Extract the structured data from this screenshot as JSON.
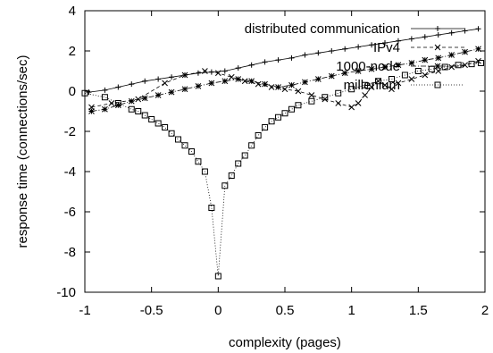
{
  "chart_data": {
    "type": "line",
    "xlabel": "complexity (pages)",
    "ylabel": "response time (connections/sec)",
    "xlim": [
      -1,
      2
    ],
    "ylim": [
      -10,
      4
    ],
    "xticks": [
      "-1",
      "-0.5",
      "0",
      "0.5",
      "1",
      "1.5",
      "2"
    ],
    "yticks": [
      "-10",
      "-8",
      "-6",
      "-4",
      "-2",
      "0",
      "2",
      "4"
    ],
    "grid": false,
    "legend_position": "top-right",
    "series": [
      {
        "name": "distributed communication",
        "marker": "+",
        "line": "solid",
        "points": [
          [
            -0.97,
            -0.05
          ],
          [
            -0.85,
            0.05
          ],
          [
            -0.75,
            0.2
          ],
          [
            -0.65,
            0.35
          ],
          [
            -0.55,
            0.5
          ],
          [
            -0.45,
            0.6
          ],
          [
            -0.35,
            0.7
          ],
          [
            -0.25,
            0.8
          ],
          [
            -0.15,
            0.9
          ],
          [
            -0.05,
            0.95
          ],
          [
            0.05,
            1.0
          ],
          [
            0.15,
            1.15
          ],
          [
            0.25,
            1.3
          ],
          [
            0.35,
            1.45
          ],
          [
            0.45,
            1.55
          ],
          [
            0.55,
            1.65
          ],
          [
            0.65,
            1.8
          ],
          [
            0.75,
            1.9
          ],
          [
            0.85,
            2.0
          ],
          [
            0.95,
            2.1
          ],
          [
            1.05,
            2.2
          ],
          [
            1.15,
            2.3
          ],
          [
            1.25,
            2.4
          ],
          [
            1.35,
            2.5
          ],
          [
            1.45,
            2.6
          ],
          [
            1.55,
            2.7
          ],
          [
            1.65,
            2.8
          ],
          [
            1.75,
            2.9
          ],
          [
            1.85,
            3.0
          ],
          [
            1.95,
            3.1
          ]
        ]
      },
      {
        "name": "IPv4",
        "marker": "x",
        "line": "dashed",
        "points": [
          [
            -0.95,
            -0.8
          ],
          [
            -0.8,
            -0.6
          ],
          [
            -0.6,
            -0.4
          ],
          [
            -0.4,
            0.4
          ],
          [
            -0.25,
            0.8
          ],
          [
            -0.1,
            1.0
          ],
          [
            0.0,
            0.9
          ],
          [
            0.1,
            0.7
          ],
          [
            0.2,
            0.5
          ],
          [
            0.3,
            0.35
          ],
          [
            0.4,
            0.2
          ],
          [
            0.5,
            0.1
          ],
          [
            0.6,
            0.0
          ],
          [
            0.7,
            -0.2
          ],
          [
            0.8,
            -0.4
          ],
          [
            0.9,
            -0.6
          ],
          [
            1.0,
            -0.8
          ],
          [
            1.05,
            -0.6
          ],
          [
            1.1,
            -0.2
          ],
          [
            1.15,
            0.2
          ],
          [
            1.2,
            0.5
          ],
          [
            1.25,
            0.3
          ],
          [
            1.3,
            0.1
          ],
          [
            1.35,
            0.4
          ],
          [
            1.45,
            0.6
          ],
          [
            1.55,
            0.8
          ],
          [
            1.65,
            1.0
          ],
          [
            1.75,
            1.2
          ],
          [
            1.85,
            1.3
          ],
          [
            1.95,
            1.5
          ]
        ]
      },
      {
        "name": "1000-node",
        "marker": "*",
        "line": "dash-dot",
        "points": [
          [
            -0.95,
            -1.0
          ],
          [
            -0.85,
            -0.9
          ],
          [
            -0.75,
            -0.7
          ],
          [
            -0.65,
            -0.5
          ],
          [
            -0.55,
            -0.35
          ],
          [
            -0.45,
            -0.2
          ],
          [
            -0.35,
            -0.05
          ],
          [
            -0.25,
            0.1
          ],
          [
            -0.15,
            0.25
          ],
          [
            -0.05,
            0.4
          ],
          [
            0.05,
            0.5
          ],
          [
            0.15,
            0.6
          ],
          [
            0.25,
            0.5
          ],
          [
            0.35,
            0.35
          ],
          [
            0.45,
            0.2
          ],
          [
            0.55,
            0.3
          ],
          [
            0.65,
            0.45
          ],
          [
            0.75,
            0.6
          ],
          [
            0.85,
            0.75
          ],
          [
            0.95,
            0.9
          ],
          [
            1.05,
            1.0
          ],
          [
            1.15,
            1.1
          ],
          [
            1.25,
            1.2
          ],
          [
            1.35,
            1.3
          ],
          [
            1.45,
            1.4
          ],
          [
            1.55,
            1.55
          ],
          [
            1.65,
            1.65
          ],
          [
            1.75,
            1.8
          ],
          [
            1.85,
            1.95
          ],
          [
            1.95,
            2.1
          ]
        ]
      },
      {
        "name": "millenium",
        "marker": "square",
        "line": "dotted",
        "points": [
          [
            -1.0,
            -0.1
          ],
          [
            -0.85,
            -0.3
          ],
          [
            -0.75,
            -0.6
          ],
          [
            -0.65,
            -0.9
          ],
          [
            -0.6,
            -1.0
          ],
          [
            -0.55,
            -1.2
          ],
          [
            -0.5,
            -1.4
          ],
          [
            -0.45,
            -1.6
          ],
          [
            -0.4,
            -1.8
          ],
          [
            -0.35,
            -2.1
          ],
          [
            -0.3,
            -2.4
          ],
          [
            -0.25,
            -2.7
          ],
          [
            -0.2,
            -3.0
          ],
          [
            -0.15,
            -3.5
          ],
          [
            -0.1,
            -4.0
          ],
          [
            -0.05,
            -5.8
          ],
          [
            0.0,
            -9.2
          ],
          [
            0.05,
            -4.7
          ],
          [
            0.1,
            -4.2
          ],
          [
            0.15,
            -3.6
          ],
          [
            0.2,
            -3.2
          ],
          [
            0.25,
            -2.7
          ],
          [
            0.3,
            -2.2
          ],
          [
            0.35,
            -1.8
          ],
          [
            0.4,
            -1.5
          ],
          [
            0.45,
            -1.3
          ],
          [
            0.5,
            -1.1
          ],
          [
            0.55,
            -0.9
          ],
          [
            0.6,
            -0.7
          ],
          [
            0.7,
            -0.5
          ],
          [
            0.8,
            -0.3
          ],
          [
            0.9,
            -0.1
          ],
          [
            1.0,
            0.1
          ],
          [
            1.1,
            0.3
          ],
          [
            1.2,
            0.5
          ],
          [
            1.3,
            0.6
          ],
          [
            1.4,
            0.8
          ],
          [
            1.5,
            1.0
          ],
          [
            1.6,
            1.1
          ],
          [
            1.7,
            1.2
          ],
          [
            1.8,
            1.3
          ],
          [
            1.9,
            1.35
          ],
          [
            1.97,
            1.4
          ]
        ]
      }
    ]
  }
}
